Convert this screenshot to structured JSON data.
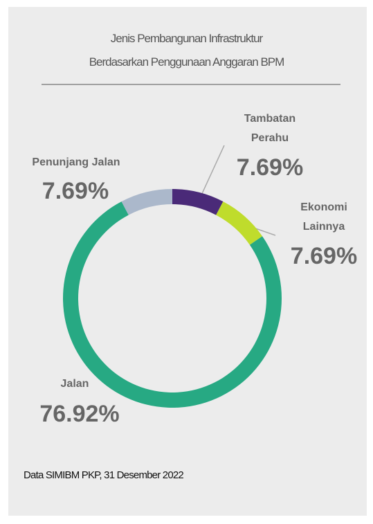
{
  "chart_data": {
    "type": "donut",
    "title": [
      "Jenis Pembangunan Infrastruktur",
      "Berdasarkan Penggunaan Anggaran BPM"
    ],
    "categories": [
      "Tambatan Perahu",
      "Ekonomi Lainnya",
      "Jalan",
      "Penunjang Jalan"
    ],
    "values": [
      7.69,
      7.69,
      76.92,
      7.69
    ],
    "value_labels": [
      "7.69%",
      "7.69%",
      "76.92%",
      "7.69%"
    ],
    "colors": [
      "#4a2a78",
      "#bfdc2c",
      "#27a983",
      "#abb8cb"
    ],
    "source": "Data SIMIBM PKP, 31 Desember 2022"
  }
}
